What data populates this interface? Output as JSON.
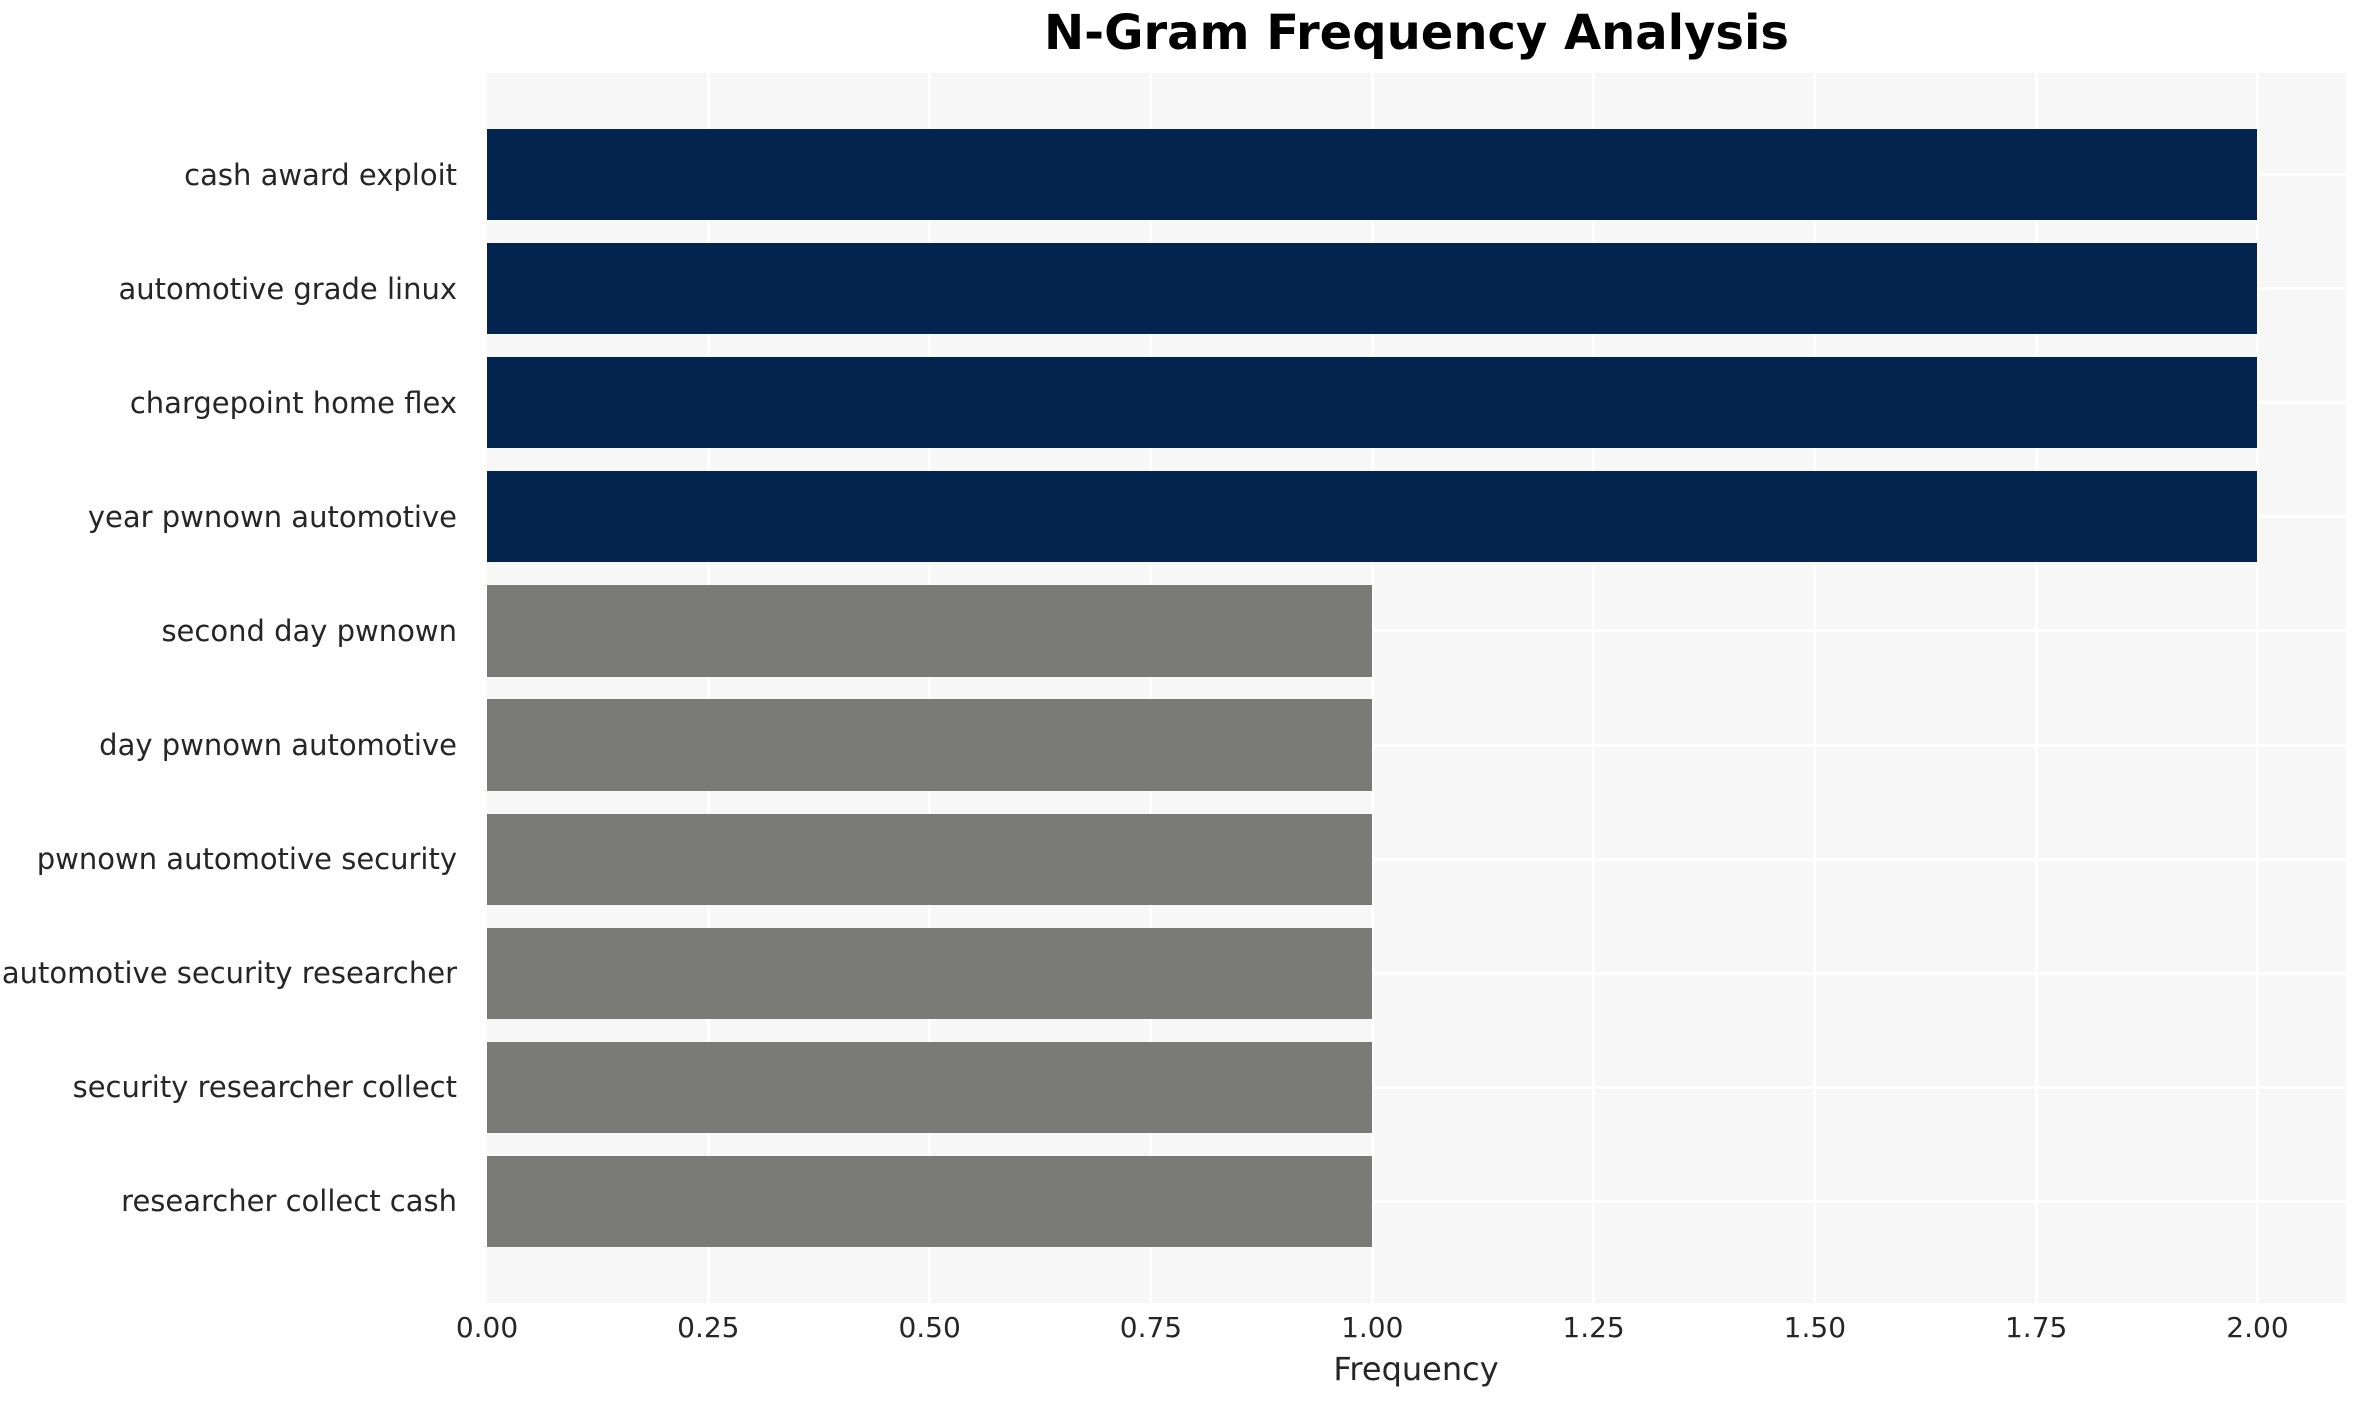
{
  "chart_data": {
    "type": "bar",
    "orientation": "horizontal",
    "title": "N-Gram Frequency Analysis",
    "xlabel": "Frequency",
    "ylabel": "",
    "categories": [
      "cash award exploit",
      "automotive grade linux",
      "chargepoint home flex",
      "year pwnown automotive",
      "second day pwnown",
      "day pwnown automotive",
      "pwnown automotive security",
      "automotive security researcher",
      "security researcher collect",
      "researcher collect cash"
    ],
    "values": [
      2,
      2,
      2,
      2,
      1,
      1,
      1,
      1,
      1,
      1
    ],
    "bar_colors": [
      "#02244e",
      "#02244e",
      "#02244e",
      "#02244e",
      "#7a7a76",
      "#7a7a76",
      "#7a7a76",
      "#7a7a76",
      "#7a7a76",
      "#7a7a76"
    ],
    "x_ticks": [
      0.0,
      0.25,
      0.5,
      0.75,
      1.0,
      1.25,
      1.5,
      1.75,
      2.0
    ],
    "x_tick_labels": [
      "0.00",
      "0.25",
      "0.50",
      "0.75",
      "1.00",
      "1.25",
      "1.50",
      "1.75",
      "2.00"
    ],
    "xlim": [
      0,
      2.1
    ],
    "grid": true,
    "legend": false,
    "colors": {
      "high_freq_bar": "#02244e",
      "low_freq_bar": "#7a7a76",
      "plot_background": "#f7f7f7",
      "gridline": "#ffffff",
      "tick_text": "#262626",
      "title_text": "#000000"
    }
  }
}
